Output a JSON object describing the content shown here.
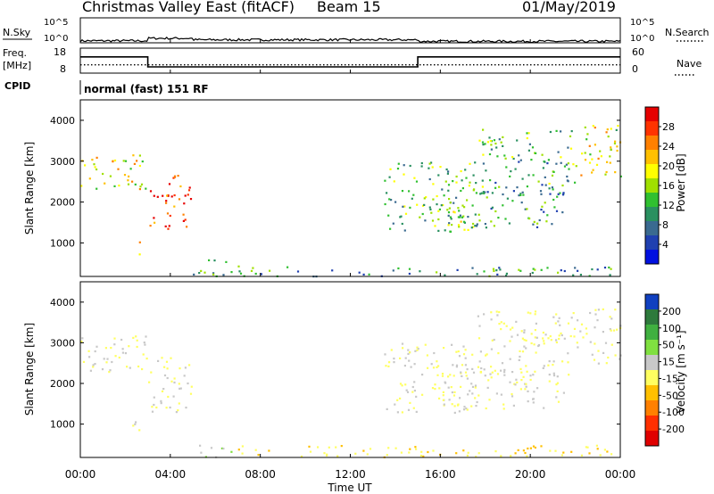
{
  "header": {
    "title": "Christmas Valley East (fitACF)",
    "beam": "Beam 15",
    "date": "01/May/2019"
  },
  "panels": {
    "noise": {
      "left_label": "N.Sky",
      "right_label": "N.Search",
      "left_ticks": [
        "10^5",
        "10^0"
      ],
      "right_ticks": [
        "10^5",
        "10^0"
      ]
    },
    "freq": {
      "left_label_1": "Freq.",
      "left_label_2": "[MHz]",
      "right_label": "Nave",
      "left_ticks": [
        "18",
        "8"
      ],
      "right_ticks": [
        "60",
        "0"
      ]
    },
    "cpid": {
      "label": "CPID",
      "value": "normal (fast) 151 RF"
    },
    "power": {
      "ylabel": "Slant Range [km]",
      "colorbar_label": "Power [dB]",
      "colorbar_ticks": [
        "28",
        "24",
        "20",
        "16",
        "12",
        "8",
        "4"
      ],
      "colorbar_colors": [
        "#e60000",
        "#ff3300",
        "#ff8000",
        "#ffc000",
        "#ffff00",
        "#a0e000",
        "#30c030",
        "#2a9060",
        "#3a6a90",
        "#2040b0",
        "#0010e0"
      ]
    },
    "velocity": {
      "ylabel": "Slant Range [km]",
      "colorbar_label": "Velocity [m s⁻¹]",
      "colorbar_ticks": [
        "200",
        "100",
        "50",
        "15",
        "-15",
        "-50",
        "-100",
        "-200"
      ],
      "colorbar_colors": [
        "#1040c0",
        "#2e7a3c",
        "#40b040",
        "#80e040",
        "#c8c8c8",
        "#ffff60",
        "#ffc000",
        "#ff8000",
        "#ff3000",
        "#e00000"
      ]
    }
  },
  "xaxis": {
    "label": "Time UT",
    "ticks": [
      "00:00",
      "04:00",
      "08:00",
      "12:00",
      "16:00",
      "20:00",
      "00:00"
    ]
  },
  "chart_data": [
    {
      "type": "line",
      "name": "noise",
      "x": [
        0,
        3,
        5,
        15,
        24
      ],
      "y_sky_log10": [
        0.4,
        0.9,
        0.6,
        0.3,
        0.5
      ],
      "ylim": [
        0,
        5
      ]
    },
    {
      "type": "line",
      "name": "frequency",
      "x": [
        0,
        3,
        15,
        24
      ],
      "freq_mhz": [
        14.5,
        10.5,
        14.5,
        14.5
      ],
      "nave": [
        20,
        20,
        20,
        20
      ],
      "ylim_freq": [
        8,
        18
      ],
      "ylim_nave": [
        0,
        60
      ]
    },
    {
      "type": "heatmap",
      "name": "power",
      "x_hours": [
        0,
        24
      ],
      "y_range_km": [
        180,
        4500
      ],
      "yticks": [
        1000,
        2000,
        3000,
        4000
      ],
      "colorbar_range": [
        0,
        32
      ],
      "regions": [
        {
          "t0": 0.0,
          "t1": 3.0,
          "r0": 2300,
          "r1": 3200,
          "level": 20
        },
        {
          "t0": 3.0,
          "t1": 5.0,
          "r0": 1300,
          "r1": 2700,
          "level": 28
        },
        {
          "t0": 2.3,
          "t1": 2.7,
          "r0": 700,
          "r1": 1200,
          "level": 22
        },
        {
          "t0": 5.0,
          "t1": 7.0,
          "r0": 200,
          "r1": 600,
          "level": 12
        },
        {
          "t0": 7.0,
          "t1": 24.0,
          "r0": 200,
          "r1": 450,
          "level": 10
        },
        {
          "t0": 13.5,
          "t1": 17.5,
          "r0": 1300,
          "r1": 3000,
          "level": 14
        },
        {
          "t0": 16.0,
          "t1": 21.5,
          "r0": 1400,
          "r1": 2400,
          "level": 10
        },
        {
          "t0": 17.5,
          "t1": 22.0,
          "r0": 2200,
          "r1": 3800,
          "level": 12
        },
        {
          "t0": 22.0,
          "t1": 24.0,
          "r0": 2500,
          "r1": 3900,
          "level": 18
        }
      ]
    },
    {
      "type": "heatmap",
      "name": "velocity",
      "x_hours": [
        0,
        24
      ],
      "y_range_km": [
        180,
        4500
      ],
      "yticks": [
        1000,
        2000,
        3000,
        4000
      ],
      "colorbar_range": [
        -250,
        250
      ],
      "regions": [
        {
          "t0": 0.0,
          "t1": 3.0,
          "r0": 2300,
          "r1": 3200,
          "level": 0
        },
        {
          "t0": 3.0,
          "t1": 5.0,
          "r0": 1300,
          "r1": 2700,
          "level": 0
        },
        {
          "t0": 2.3,
          "t1": 2.7,
          "r0": 700,
          "r1": 1200,
          "level": 0
        },
        {
          "t0": 5.0,
          "t1": 7.0,
          "r0": 200,
          "r1": 500,
          "level": 40
        },
        {
          "t0": 7.0,
          "t1": 24.0,
          "r0": 200,
          "r1": 500,
          "level": -40
        },
        {
          "t0": 13.5,
          "t1": 17.5,
          "r0": 1300,
          "r1": 3000,
          "level": 0
        },
        {
          "t0": 16.0,
          "t1": 21.5,
          "r0": 1400,
          "r1": 2400,
          "level": 0
        },
        {
          "t0": 17.5,
          "t1": 22.0,
          "r0": 2200,
          "r1": 3800,
          "level": 0
        },
        {
          "t0": 22.0,
          "t1": 24.0,
          "r0": 2500,
          "r1": 3900,
          "level": 0
        }
      ]
    }
  ]
}
